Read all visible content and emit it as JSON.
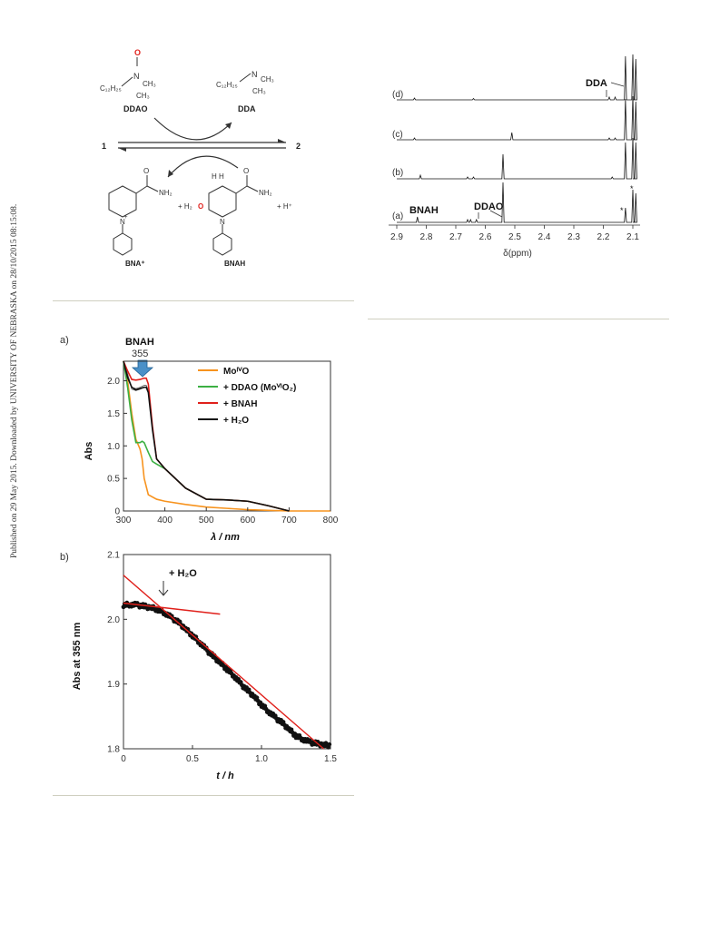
{
  "sidebar_note": "Published on 29 May 2015. Downloaded by UNIVERSITY OF NEBRASKA on 28/10/2015 08:15:08.",
  "scheme": {
    "ddao": {
      "label": "DDAO",
      "chain": "C₁₂H₂₅",
      "n": "N",
      "ch3a": "CH₃",
      "ch3b": "CH₃",
      "o": "O"
    },
    "dda": {
      "label": "DDA",
      "chain": "C₁₂H₂₅",
      "n": "N",
      "ch3a": "CH₃",
      "ch3b": "CH₃"
    },
    "left_num": "1",
    "right_num": "2",
    "bna": {
      "label": "BNA⁺",
      "nh2": "NH₂",
      "o": "O",
      "n": "N",
      "plus": "+"
    },
    "h2o": {
      "plus": "+ H₂",
      "o": "O"
    },
    "bnah": {
      "label": "BNAH",
      "nh2": "NH₂",
      "o": "O",
      "n": "N",
      "h": "H  H"
    },
    "hplus": "+ H⁺"
  },
  "nmr": {
    "spectra": [
      "(d)",
      "(c)",
      "(b)",
      "(a)"
    ],
    "labels": {
      "dda": "DDA",
      "ddao": "DDAO",
      "bnah": "BNAH",
      "star1": "*",
      "star2": "*"
    },
    "xlabel": "δ(ppm)",
    "ticks": [
      "2.9",
      "2.8",
      "2.7",
      "2.6",
      "2.5",
      "2.4",
      "2.3",
      "2.2",
      "2.1"
    ]
  },
  "chart_a": {
    "panel": "a)",
    "annotation": {
      "name": "BNAH",
      "value": "355"
    },
    "ylabel": "Abs",
    "xlabel": "λ / nm",
    "xticks": [
      "300",
      "400",
      "500",
      "600",
      "700",
      "800"
    ],
    "yticks": [
      "0",
      "0.5",
      "1.0",
      "1.5",
      "2.0"
    ],
    "legend": [
      {
        "text": "MoᴵⱽO",
        "color": "#f7931e"
      },
      {
        "text": "+ DDAO (MoⱽᴵO₂)",
        "color": "#3cb043"
      },
      {
        "text": "+ BNAH",
        "color": "#e0201b"
      },
      {
        "text": "+ H₂O",
        "color": "#111111"
      }
    ]
  },
  "chart_b": {
    "panel": "b)",
    "annotation": "+ H₂O",
    "ylabel": "Abs at 355 nm",
    "xlabel": "t / h",
    "xticks": [
      "0",
      "0.5",
      "1.0",
      "1.5"
    ],
    "yticks": [
      "1.8",
      "1.9",
      "2.0",
      "2.1"
    ]
  },
  "chart_data": [
    {
      "type": "line",
      "xlabel": "λ / nm",
      "ylabel": "Abs",
      "xlim": [
        300,
        800
      ],
      "ylim": [
        0,
        2.3
      ],
      "series": [
        {
          "name": "MoᴵⱽO",
          "x": [
            300,
            310,
            320,
            330,
            340,
            345,
            350,
            360,
            380,
            400,
            450,
            500,
            550,
            600,
            650,
            700,
            800
          ],
          "y": [
            2.3,
            2.0,
            1.5,
            1.1,
            0.95,
            0.8,
            0.5,
            0.25,
            0.18,
            0.15,
            0.1,
            0.06,
            0.04,
            0.02,
            0.01,
            0.0,
            0.0
          ]
        },
        {
          "name": "+ DDAO (MoⱽᴵO₂)",
          "x": [
            300,
            310,
            320,
            330,
            340,
            345,
            350,
            360,
            370,
            380,
            400,
            450,
            500,
            550,
            600,
            650,
            700
          ],
          "y": [
            2.3,
            1.9,
            1.4,
            1.05,
            1.05,
            1.07,
            1.05,
            0.9,
            0.76,
            0.72,
            0.65,
            0.35,
            0.18,
            0.17,
            0.15,
            0.08,
            0.0
          ]
        },
        {
          "name": "+ BNAH",
          "x": [
            300,
            310,
            320,
            330,
            340,
            350,
            355,
            360,
            370,
            380,
            400,
            450,
            500,
            550,
            600,
            650,
            700
          ],
          "y": [
            2.3,
            2.15,
            2.02,
            2.01,
            2.02,
            2.04,
            2.04,
            1.95,
            1.3,
            0.8,
            0.65,
            0.35,
            0.18,
            0.17,
            0.15,
            0.08,
            0.0
          ]
        },
        {
          "name": "+ H₂O",
          "x": [
            300,
            310,
            320,
            330,
            340,
            350,
            355,
            360,
            370,
            380,
            400,
            450,
            500,
            550,
            600,
            650,
            700
          ],
          "y": [
            2.3,
            2.05,
            1.9,
            1.86,
            1.88,
            1.9,
            1.9,
            1.82,
            1.25,
            0.8,
            0.65,
            0.35,
            0.18,
            0.17,
            0.15,
            0.08,
            0.0
          ]
        }
      ],
      "annotations": [
        {
          "text": "BNAH 355",
          "x": 355
        }
      ]
    },
    {
      "type": "scatter",
      "xlabel": "t / h",
      "ylabel": "Abs at 355 nm",
      "xlim": [
        0,
        1.5
      ],
      "ylim": [
        1.8,
        2.1
      ],
      "series": [
        {
          "name": "",
          "x": [
            0,
            0.05,
            0.1,
            0.15,
            0.2,
            0.25,
            0.3,
            0.35,
            0.4,
            0.45,
            0.5,
            0.55,
            0.6,
            0.65,
            0.7,
            0.75,
            0.8,
            0.85,
            0.9,
            0.95,
            1.0,
            1.05,
            1.1,
            1.15,
            1.2,
            1.25,
            1.3,
            1.35,
            1.4,
            1.45,
            1.5
          ],
          "y": [
            2.022,
            2.023,
            2.022,
            2.02,
            2.018,
            2.015,
            2.01,
            2.002,
            1.995,
            1.985,
            1.975,
            1.965,
            1.953,
            1.943,
            1.933,
            1.923,
            1.913,
            1.9,
            1.89,
            1.88,
            1.868,
            1.858,
            1.848,
            1.84,
            1.83,
            1.82,
            1.815,
            1.81,
            1.808,
            1.806,
            1.805
          ]
        }
      ],
      "fit_lines": [
        {
          "x": [
            0,
            0.7
          ],
          "y": [
            2.025,
            2.008
          ]
        },
        {
          "x": [
            0,
            1.45
          ],
          "y": [
            2.068,
            1.8
          ]
        }
      ],
      "annotations": [
        {
          "text": "+ H₂O",
          "x": 0.28
        }
      ]
    }
  ]
}
